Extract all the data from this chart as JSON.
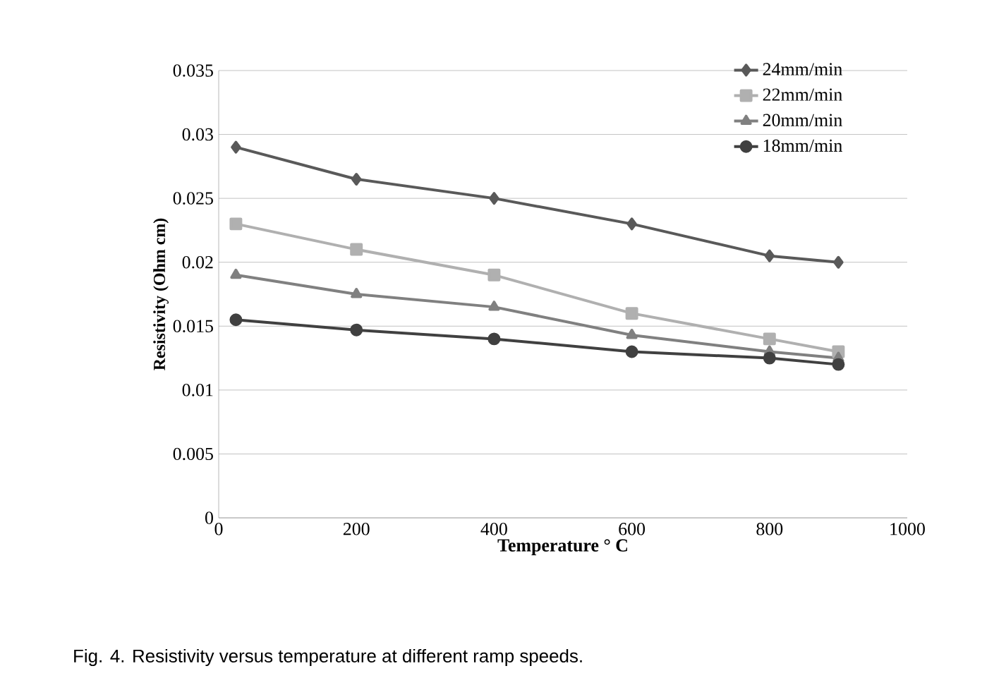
{
  "chart_data": {
    "type": "line",
    "xlabel": "Temperature ° C",
    "ylabel": "Resistivity (Ohm cm)",
    "annotations": [
      "Fig. 4. Resistivity versus temperature at different ramp speeds."
    ],
    "x": [
      25,
      200,
      400,
      600,
      800,
      900
    ],
    "series": [
      {
        "name": "24mm/min",
        "color": "#595959",
        "marker": "diamond",
        "values": [
          0.029,
          0.0265,
          0.025,
          0.023,
          0.0205,
          0.02
        ]
      },
      {
        "name": "22mm/min",
        "color": "#b0b0b0",
        "marker": "square",
        "values": [
          0.023,
          0.021,
          0.019,
          0.016,
          0.014,
          0.013
        ]
      },
      {
        "name": "20mm/min",
        "color": "#808080",
        "marker": "triangle",
        "values": [
          0.019,
          0.0175,
          0.0165,
          0.0143,
          0.013,
          0.0125
        ]
      },
      {
        "name": "18mm/min",
        "color": "#404040",
        "marker": "circle",
        "values": [
          0.0155,
          0.0147,
          0.014,
          0.013,
          0.0125,
          0.012
        ]
      }
    ],
    "xlim": [
      0,
      1000
    ],
    "xticks": [
      0,
      200,
      400,
      600,
      800,
      1000
    ],
    "ylim": [
      0,
      0.035
    ],
    "yticks": [
      0,
      0.005,
      0.01,
      0.015,
      0.02,
      0.025,
      0.03,
      0.035
    ],
    "grid": "y",
    "legend": "top right",
    "line_style": "solid"
  }
}
